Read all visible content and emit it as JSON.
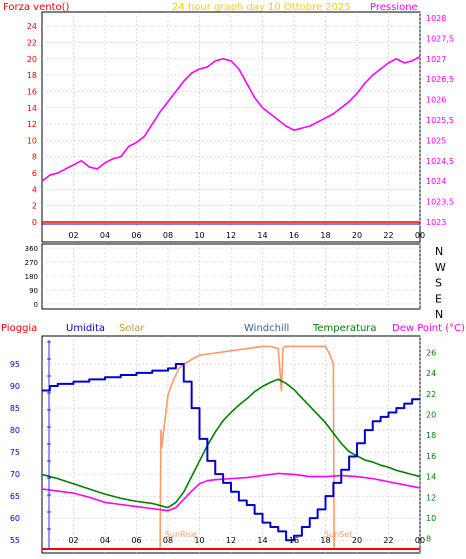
{
  "header": {
    "left_label": "Forza vento()",
    "title": "24 hour graph day   10 Ottobre 2025",
    "right_label": "Pressione"
  },
  "x_ticks": [
    "02",
    "04",
    "06",
    "08",
    "10",
    "12",
    "14",
    "16",
    "18",
    "20",
    "22",
    "00"
  ],
  "direction_labels": [
    "N",
    "W",
    "S",
    "E",
    "N"
  ],
  "legend": {
    "pioggia": "Pioggia",
    "umidita": "Umidita",
    "solar": "Solar",
    "windchill": "Windchill",
    "temperatura": "Temperatura",
    "dewpoint": "Dew Point (°C)"
  },
  "colors": {
    "background": "#ffffff",
    "grid": "#c8c8c8",
    "pressure": "#ff00ff",
    "wind": "#ff0000",
    "humidity": "#0000cc",
    "solar": "#ff9966",
    "temperature": "#008000",
    "dewpoint": "#ff00ff",
    "rain": "#ff0000",
    "axis_text": "#000000",
    "left_axis_text": "#ff0000",
    "right_axis_text": "#ff00ff",
    "temp_axis_text": "#008000",
    "humidity_axis_text": "#0000cc",
    "title_color": "#ffcc00"
  },
  "chart_data": [
    {
      "type": "line",
      "x_range": [
        0,
        24
      ],
      "left_axis": {
        "range": [
          0,
          25
        ],
        "ticks": [
          "0",
          "2",
          "4",
          "6",
          "8",
          "10",
          "12",
          "14",
          "16",
          "18",
          "20",
          "22",
          "24"
        ]
      },
      "right_axis": {
        "range": [
          1023,
          1028
        ],
        "ticks": [
          "1023",
          "1023,5",
          "1024",
          "1024,5",
          "1025",
          "1025,5",
          "1026",
          "1026,5",
          "1027",
          "1027,5",
          "1028"
        ]
      },
      "series": [
        {
          "key": "pressure",
          "axis": "right",
          "x": [
            0,
            0.5,
            1,
            1.5,
            2,
            2.5,
            3,
            3.5,
            4,
            4.5,
            5,
            5.5,
            6,
            6.5,
            7,
            7.5,
            8,
            8.5,
            9,
            9.5,
            10,
            10.5,
            11,
            11.5,
            12,
            12.5,
            13,
            13.5,
            14,
            14.5,
            15,
            15.5,
            16,
            16.5,
            17,
            17.5,
            18,
            18.5,
            19,
            19.5,
            20,
            20.5,
            21,
            21.5,
            22,
            22.5,
            23,
            23.5,
            24
          ],
          "values": [
            1024.0,
            1024.15,
            1024.2,
            1024.3,
            1024.4,
            1024.5,
            1024.35,
            1024.3,
            1024.45,
            1024.55,
            1024.6,
            1024.85,
            1024.95,
            1025.1,
            1025.4,
            1025.7,
            1025.95,
            1026.2,
            1026.45,
            1026.65,
            1026.75,
            1026.8,
            1026.95,
            1027.0,
            1026.95,
            1026.75,
            1026.4,
            1026.05,
            1025.8,
            1025.65,
            1025.5,
            1025.35,
            1025.25,
            1025.3,
            1025.35,
            1025.45,
            1025.55,
            1025.65,
            1025.8,
            1025.95,
            1026.15,
            1026.4,
            1026.6,
            1026.75,
            1026.9,
            1027.0,
            1026.9,
            1026.95,
            1027.05
          ]
        },
        {
          "key": "wind",
          "axis": "left",
          "x": [
            0,
            24
          ],
          "values": [
            0,
            0
          ]
        }
      ]
    },
    {
      "type": "line",
      "x_range": [
        0,
        24
      ],
      "left_axis": {
        "range": [
          0,
          360
        ],
        "ticks": [
          "0",
          "90",
          "180",
          "270",
          "360"
        ]
      },
      "series": []
    },
    {
      "type": "line",
      "x_range": [
        0,
        24
      ],
      "left_axis": {
        "range": [
          53,
          100
        ],
        "ticks": [
          "55",
          "60",
          "65",
          "70",
          "75",
          "80",
          "85",
          "90",
          "95"
        ]
      },
      "right_axis": {
        "range": [
          7,
          27
        ],
        "ticks": [
          "8",
          "10",
          "12",
          "14",
          "16",
          "18",
          "20",
          "22",
          "24",
          "26"
        ]
      },
      "series": [
        {
          "key": "humidity",
          "axis": "left",
          "x": [
            0,
            0.5,
            1,
            2,
            3,
            4,
            5,
            6,
            7,
            8,
            8.5,
            9,
            9.5,
            10,
            10.5,
            11,
            11.5,
            12,
            12.5,
            13,
            13.5,
            14,
            14.5,
            15,
            15.5,
            16,
            16.5,
            17,
            17.5,
            18,
            18.5,
            19,
            19.5,
            20,
            20.5,
            21,
            21.5,
            22,
            22.5,
            23,
            23.5,
            24
          ],
          "values": [
            89,
            90,
            90.5,
            91,
            91.5,
            92,
            92.5,
            93,
            93.5,
            94,
            95,
            91,
            85,
            78,
            73,
            70,
            68,
            66,
            64,
            63,
            61,
            59,
            58,
            57,
            55,
            56,
            58,
            60,
            62,
            65,
            68,
            71,
            74,
            77,
            80,
            82,
            83,
            84,
            85,
            86,
            87,
            87
          ]
        },
        {
          "key": "temperature",
          "axis": "right",
          "x": [
            0,
            0.5,
            1,
            2,
            3,
            4,
            5,
            6,
            7,
            8,
            8.5,
            9,
            9.5,
            10,
            10.5,
            11,
            11.5,
            12,
            12.5,
            13,
            13.5,
            14,
            14.5,
            15,
            15.5,
            16,
            16.5,
            17,
            17.5,
            18,
            18.5,
            19,
            19.5,
            20,
            20.5,
            21,
            21.5,
            22,
            22.5,
            23,
            23.5,
            24
          ],
          "values": [
            14.2,
            14.0,
            13.8,
            13.3,
            12.8,
            12.3,
            11.9,
            11.6,
            11.4,
            11.0,
            11.5,
            12.5,
            14.0,
            15.5,
            17.0,
            18.3,
            19.4,
            20.2,
            20.9,
            21.5,
            22.2,
            22.7,
            23.1,
            23.4,
            23.0,
            22.4,
            21.6,
            20.8,
            20.0,
            19.2,
            18.2,
            17.2,
            16.4,
            16.0,
            15.6,
            15.4,
            15.1,
            14.9,
            14.6,
            14.4,
            14.2,
            14.0
          ]
        },
        {
          "key": "dewpoint",
          "axis": "right",
          "x": [
            0,
            0.5,
            1,
            2,
            3,
            4,
            5,
            6,
            7,
            7.5,
            8,
            8.5,
            9,
            9.5,
            10,
            10.5,
            11,
            12,
            13,
            14,
            15,
            16,
            17,
            18,
            19,
            20,
            21,
            22,
            23,
            24
          ],
          "values": [
            12.8,
            12.7,
            12.6,
            12.4,
            12.0,
            11.5,
            11.3,
            11.1,
            10.9,
            10.8,
            10.7,
            11.0,
            11.8,
            12.6,
            13.3,
            13.6,
            13.7,
            13.8,
            13.9,
            14.1,
            14.3,
            14.2,
            14.0,
            14.0,
            14.1,
            14.0,
            13.8,
            13.5,
            13.2,
            12.9
          ]
        },
        {
          "key": "solar",
          "axis": "left",
          "x": [
            0,
            7.5,
            7.55,
            7.6,
            7.8,
            8.0,
            8.3,
            8.7,
            9.0,
            9.5,
            10,
            11,
            12,
            13,
            14,
            14.5,
            15,
            15.2,
            15.3,
            15.4,
            15.6,
            16,
            17,
            18,
            18.3,
            18.5,
            18.55,
            18.6,
            24
          ],
          "values": [
            53,
            53,
            80,
            76,
            82,
            88,
            91,
            94,
            95,
            96,
            97,
            97.5,
            98,
            98.5,
            99,
            99,
            98.5,
            89,
            98.5,
            99,
            99,
            99,
            99,
            99,
            97,
            95,
            53,
            53,
            53
          ]
        },
        {
          "key": "rain",
          "axis": "left",
          "x": [
            0,
            24
          ],
          "values": [
            53,
            53
          ]
        }
      ],
      "annotations": [
        "SunRise",
        "SunSet"
      ]
    }
  ]
}
